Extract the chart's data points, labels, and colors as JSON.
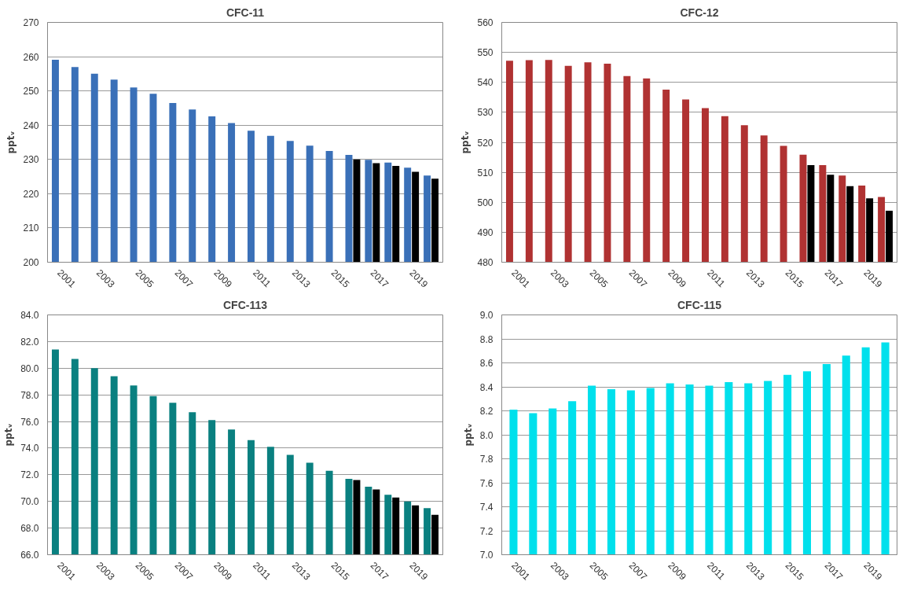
{
  "chart_data": [
    {
      "type": "bar",
      "title": "CFC-11",
      "ylabel": "pptᵥ",
      "categories": [
        "2001",
        null,
        "2003",
        null,
        "2005",
        null,
        "2007",
        null,
        "2009",
        null,
        "2011",
        null,
        "2013",
        null,
        "2015",
        null,
        "2017",
        null,
        "2019",
        null
      ],
      "ylim": [
        200,
        270
      ],
      "yticks": [
        200,
        210,
        220,
        230,
        240,
        250,
        260,
        270
      ],
      "grid": "y",
      "series": [
        {
          "color": "#3a70b8",
          "values": [
            259.1,
            257.0,
            255.0,
            253.3,
            251.0,
            249.2,
            246.5,
            244.6,
            242.6,
            240.6,
            238.4,
            236.9,
            235.4,
            234.0,
            232.5,
            231.3,
            229.9,
            229.1,
            227.6,
            225.3
          ]
        },
        {
          "color": "#000000",
          "values": [
            null,
            null,
            null,
            null,
            null,
            null,
            null,
            null,
            null,
            null,
            null,
            null,
            null,
            null,
            null,
            230.0,
            228.9,
            228.1,
            226.4,
            224.4
          ]
        }
      ]
    },
    {
      "type": "bar",
      "title": "CFC-12",
      "ylabel": "pptᵥ",
      "categories": [
        "2001",
        null,
        "2003",
        null,
        "2005",
        null,
        "2007",
        null,
        "2009",
        null,
        "2011",
        null,
        "2013",
        null,
        "2015",
        null,
        "2017",
        null,
        "2019",
        null
      ],
      "ylim": [
        480,
        560
      ],
      "yticks": [
        480,
        490,
        500,
        510,
        520,
        530,
        540,
        550,
        560
      ],
      "grid": "y",
      "series": [
        {
          "color": "#b03232",
          "values": [
            547.2,
            547.4,
            547.5,
            545.5,
            546.7,
            546.2,
            542.1,
            541.3,
            537.6,
            534.3,
            531.4,
            528.7,
            525.7,
            522.3,
            518.8,
            515.9,
            512.4,
            508.9,
            505.6,
            501.8
          ]
        },
        {
          "color": "#000000",
          "values": [
            null,
            null,
            null,
            null,
            null,
            null,
            null,
            null,
            null,
            null,
            null,
            null,
            null,
            null,
            null,
            512.4,
            509.2,
            505.4,
            501.3,
            497.2
          ]
        }
      ]
    },
    {
      "type": "bar",
      "title": "CFC-113",
      "ylabel": "pptᵥ",
      "categories": [
        "2001",
        null,
        "2003",
        null,
        "2005",
        null,
        "2007",
        null,
        "2009",
        null,
        "2011",
        null,
        "2013",
        null,
        "2015",
        null,
        "2017",
        null,
        "2019",
        null
      ],
      "ylim": [
        66,
        84
      ],
      "yticks": [
        {
          "value": 66,
          "label": "66.0"
        },
        {
          "value": 68,
          "label": "68.0"
        },
        {
          "value": 70,
          "label": "70.0"
        },
        {
          "value": 72,
          "label": "72.0"
        },
        {
          "value": 74,
          "label": "74.0"
        },
        {
          "value": 76,
          "label": "76.0"
        },
        {
          "value": 78,
          "label": "78.0"
        },
        {
          "value": 80,
          "label": "80.0"
        },
        {
          "value": 82,
          "label": "82.0"
        },
        {
          "value": 84,
          "label": "84.0"
        }
      ],
      "grid": "y",
      "series": [
        {
          "color": "#0a8080",
          "values": [
            81.4,
            80.7,
            80.0,
            79.4,
            78.7,
            77.9,
            77.4,
            76.7,
            76.1,
            75.4,
            74.6,
            74.1,
            73.5,
            72.9,
            72.3,
            71.7,
            71.1,
            70.5,
            70.0,
            69.5
          ]
        },
        {
          "color": "#000000",
          "values": [
            null,
            null,
            null,
            null,
            null,
            null,
            null,
            null,
            null,
            null,
            null,
            null,
            null,
            null,
            null,
            71.6,
            70.9,
            70.3,
            69.7,
            69.0
          ]
        }
      ]
    },
    {
      "type": "bar",
      "title": "CFC-115",
      "ylabel": "pptᵥ",
      "categories": [
        "2001",
        null,
        "2003",
        null,
        "2005",
        null,
        "2007",
        null,
        "2009",
        null,
        "2011",
        null,
        "2013",
        null,
        "2015",
        null,
        "2017",
        null,
        "2019",
        null
      ],
      "ylim": [
        7.0,
        9.0
      ],
      "yticks": [
        {
          "value": 7.0,
          "label": "7.0"
        },
        {
          "value": 7.2,
          "label": "7.2"
        },
        {
          "value": 7.4,
          "label": "7.4"
        },
        {
          "value": 7.6,
          "label": "7.6"
        },
        {
          "value": 7.8,
          "label": "7.8"
        },
        {
          "value": 8.0,
          "label": "8.0"
        },
        {
          "value": 8.2,
          "label": "8.2"
        },
        {
          "value": 8.4,
          "label": "8.4"
        },
        {
          "value": 8.6,
          "label": "8.6"
        },
        {
          "value": 8.8,
          "label": "8.8"
        },
        {
          "value": 9.0,
          "label": "9.0"
        }
      ],
      "grid": "y",
      "series": [
        {
          "color": "#00e0ec",
          "values": [
            8.21,
            8.18,
            8.22,
            8.28,
            8.41,
            8.38,
            8.37,
            8.39,
            8.43,
            8.42,
            8.41,
            8.44,
            8.43,
            8.45,
            8.5,
            8.53,
            8.59,
            8.66,
            8.73,
            8.77
          ]
        }
      ]
    }
  ]
}
